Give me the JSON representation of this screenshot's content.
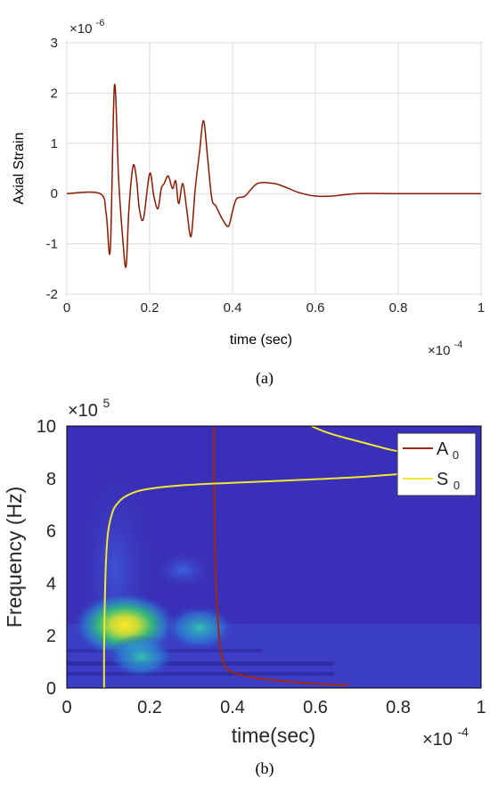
{
  "captions": {
    "a": "(a)",
    "b": "(b)"
  },
  "chart_data": [
    {
      "type": "line",
      "panel": "(a)",
      "xlabel": "time (sec)",
      "ylabel": "Axial Strain",
      "x_multiplier": "×10",
      "x_multiplier_exp": "-4",
      "y_multiplier": "×10",
      "y_multiplier_exp": "-6",
      "xlim": [
        0,
        1
      ],
      "ylim": [
        -2,
        3
      ],
      "xticks": [
        "0",
        "0.2",
        "0.4",
        "0.6",
        "0.8",
        "1"
      ],
      "yticks": [
        "-2",
        "-1",
        "0",
        "1",
        "2",
        "3"
      ],
      "grid": true,
      "line_color": "#8b1a00",
      "series": [
        {
          "x": [
            0,
            0.08,
            0.095,
            0.105,
            0.115,
            0.125,
            0.135,
            0.143,
            0.15,
            0.16,
            0.168,
            0.175,
            0.185,
            0.2,
            0.21,
            0.22,
            0.228,
            0.235,
            0.245,
            0.255,
            0.263,
            0.27,
            0.28,
            0.29,
            0.3,
            0.31,
            0.32,
            0.33,
            0.34,
            0.35,
            0.36,
            0.375,
            0.39,
            0.4,
            0.41,
            0.43,
            0.46,
            0.5,
            0.53,
            0.56,
            0.6,
            0.64,
            0.7,
            0.8,
            0.9,
            1.0
          ],
          "y": [
            0,
            0,
            -0.4,
            -1.1,
            2.15,
            0.3,
            -0.9,
            -1.45,
            -0.3,
            0.55,
            0.3,
            -0.3,
            -0.5,
            0.4,
            -0.05,
            -0.3,
            0.1,
            0.2,
            0.35,
            0.1,
            0.25,
            -0.2,
            0.2,
            -0.35,
            -0.85,
            0.1,
            0.8,
            1.45,
            0.7,
            -0.1,
            -0.25,
            -0.5,
            -0.65,
            -0.35,
            -0.1,
            -0.05,
            0.2,
            0.2,
            0.12,
            0.02,
            -0.05,
            -0.05,
            0,
            0,
            0,
            0
          ]
        }
      ]
    },
    {
      "type": "heatmap",
      "panel": "(b)",
      "xlabel": "time(sec)",
      "ylabel": "Frequency (Hz)",
      "x_multiplier": "×10",
      "x_multiplier_exp": "-4",
      "y_multiplier": "×10",
      "y_multiplier_exp": "5",
      "xlim": [
        0,
        1
      ],
      "ylim": [
        0,
        10
      ],
      "xticks": [
        "0",
        "0.2",
        "0.4",
        "0.6",
        "0.8",
        "1"
      ],
      "yticks": [
        "0",
        "2",
        "4",
        "6",
        "8",
        "10"
      ],
      "background_color": "#3a2fb8",
      "legend": {
        "placement": "top-right",
        "entries": [
          {
            "name": "A",
            "sub": "0",
            "color": "#a0280a"
          },
          {
            "name": "S",
            "sub": "0",
            "color": "#f0e632"
          }
        ]
      },
      "series": [
        {
          "name": "A0",
          "x": [
            0.355,
            0.355,
            0.357,
            0.36,
            0.365,
            0.37,
            0.38,
            0.4,
            0.45,
            0.5,
            0.55,
            0.6,
            0.65,
            0.68
          ],
          "y": [
            10,
            8,
            6,
            4,
            2.5,
            1.6,
            0.9,
            0.6,
            0.4,
            0.3,
            0.22,
            0.17,
            0.13,
            0.12
          ]
        },
        {
          "name": "S0",
          "x": [
            0.09,
            0.09,
            0.092,
            0.095,
            0.1,
            0.11,
            0.12,
            0.14,
            0.18,
            0.25,
            0.35,
            0.5,
            0.7,
            0.85,
            0.89
          ],
          "y": [
            0,
            1.5,
            3.5,
            5,
            6,
            6.7,
            7.0,
            7.3,
            7.55,
            7.7,
            7.8,
            7.9,
            8.05,
            8.25,
            8.4
          ]
        },
        {
          "name": "S0-upper",
          "x": [
            0.59,
            0.62,
            0.66,
            0.72,
            0.78,
            0.84,
            0.89
          ],
          "y": [
            10,
            9.8,
            9.6,
            9.35,
            9.1,
            8.9,
            8.7
          ]
        }
      ],
      "hotspots": [
        {
          "x": 0.14,
          "y": 2.4,
          "intensity": 1.0
        },
        {
          "x": 0.32,
          "y": 2.3,
          "intensity": 0.35
        },
        {
          "x": 0.18,
          "y": 1.2,
          "intensity": 0.3
        },
        {
          "x": 0.28,
          "y": 4.5,
          "intensity": 0.15
        }
      ]
    }
  ]
}
